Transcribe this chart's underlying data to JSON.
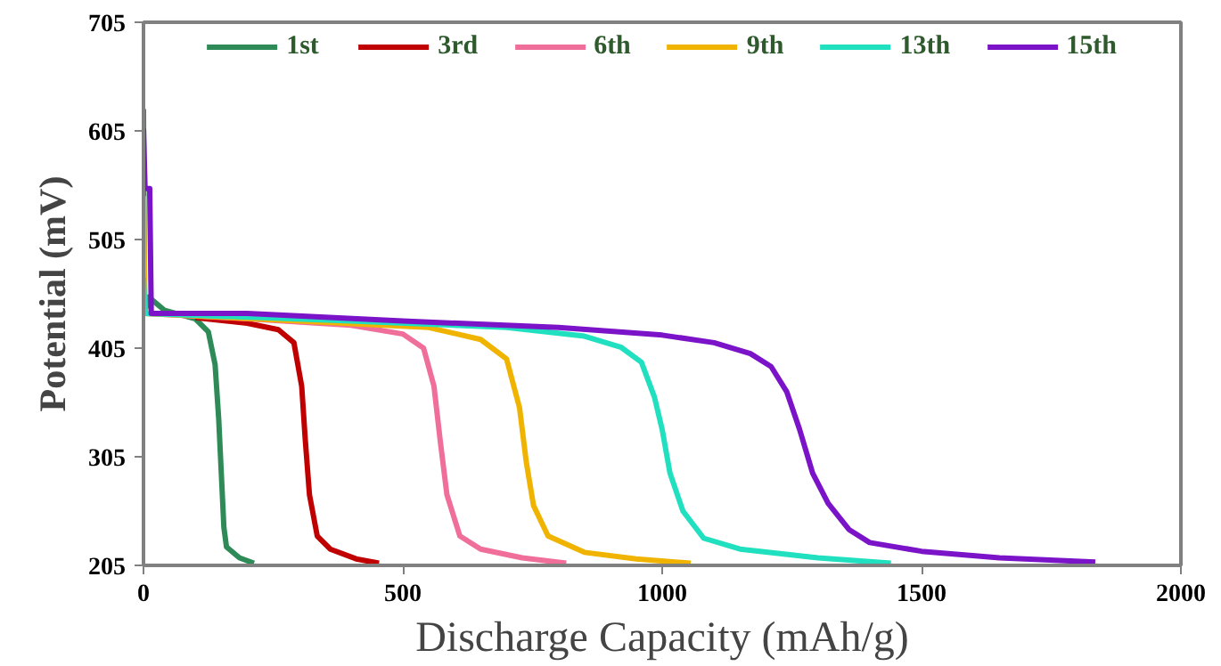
{
  "chart_data": {
    "type": "line",
    "xlabel": "Discharge Capacity (mAh/g)",
    "ylabel": "Potential (mV)",
    "xlim": [
      0,
      2000
    ],
    "xticks": [
      0,
      500,
      1000,
      1500,
      2000
    ],
    "ylim": [
      205,
      705
    ],
    "yticks": [
      205,
      305,
      405,
      505,
      605,
      705
    ],
    "legend": "top",
    "grid": false,
    "marker": "none",
    "line_style": "solid",
    "series": [
      {
        "name": "1st",
        "color": "#2e8b57",
        "x": [
          0,
          2,
          10,
          40,
          100,
          125,
          138,
          145,
          150,
          155,
          160,
          185,
          213
        ],
        "values": [
          625,
          437,
          452,
          440,
          432,
          420,
          390,
          340,
          290,
          240,
          222,
          212,
          207
        ]
      },
      {
        "name": "3rd",
        "color": "#c00000",
        "x": [
          100,
          200,
          260,
          290,
          305,
          312,
          320,
          335,
          360,
          410,
          454
        ],
        "values": [
          433,
          428,
          422,
          410,
          370,
          320,
          270,
          232,
          220,
          211,
          207
        ]
      },
      {
        "name": "6th",
        "color": "#f06e9a",
        "x": [
          3,
          200,
          400,
          500,
          540,
          560,
          572,
          585,
          610,
          650,
          730,
          815
        ],
        "values": [
          437,
          432,
          426,
          418,
          405,
          370,
          320,
          270,
          232,
          220,
          212,
          207
        ]
      },
      {
        "name": "9th",
        "color": "#f0b400",
        "x": [
          0,
          3,
          300,
          550,
          650,
          700,
          725,
          738,
          752,
          780,
          850,
          950,
          1055
        ],
        "values": [
          545,
          437,
          430,
          424,
          413,
          395,
          350,
          300,
          260,
          232,
          217,
          211,
          207
        ]
      },
      {
        "name": "13th",
        "color": "#20e0c0",
        "x": [
          0,
          3,
          400,
          700,
          850,
          920,
          960,
          985,
          1000,
          1015,
          1040,
          1080,
          1150,
          1300,
          1441
        ],
        "values": [
          470,
          437,
          430,
          424,
          416,
          406,
          392,
          360,
          330,
          290,
          255,
          230,
          220,
          212,
          207
        ]
      },
      {
        "name": "15th",
        "color": "#7b14c8",
        "x": [
          0,
          3,
          12,
          15,
          200,
          500,
          800,
          1000,
          1100,
          1170,
          1210,
          1240,
          1265,
          1290,
          1320,
          1360,
          1400,
          1500,
          1650,
          1835
        ],
        "values": [
          607,
          552,
          552,
          437,
          437,
          430,
          424,
          417,
          410,
          400,
          388,
          365,
          330,
          290,
          262,
          238,
          226,
          218,
          212,
          208
        ]
      }
    ]
  }
}
